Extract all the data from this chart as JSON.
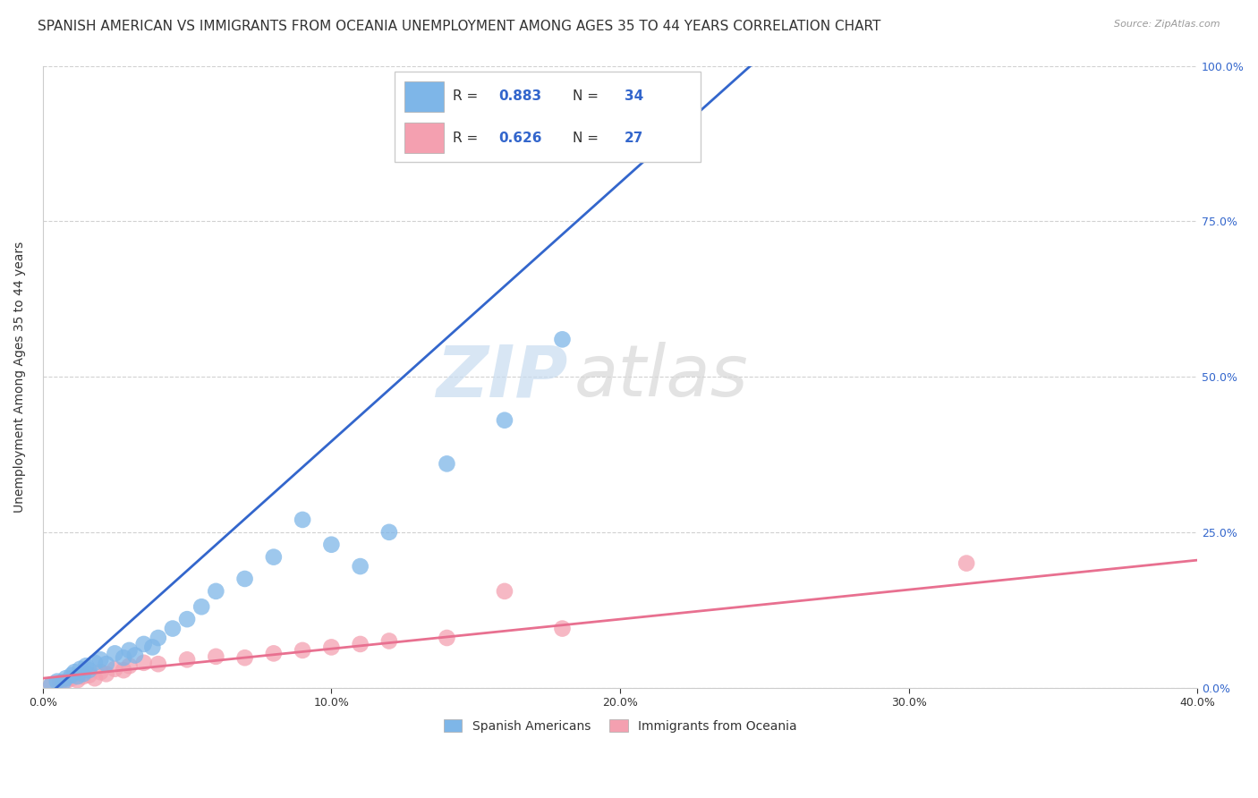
{
  "title": "SPANISH AMERICAN VS IMMIGRANTS FROM OCEANIA UNEMPLOYMENT AMONG AGES 35 TO 44 YEARS CORRELATION CHART",
  "source": "Source: ZipAtlas.com",
  "ylabel": "Unemployment Among Ages 35 to 44 years",
  "xlim": [
    0.0,
    0.4
  ],
  "ylim": [
    0.0,
    1.0
  ],
  "xtick_labels": [
    "0.0%",
    "10.0%",
    "20.0%",
    "30.0%",
    "40.0%"
  ],
  "xtick_vals": [
    0.0,
    0.1,
    0.2,
    0.3,
    0.4
  ],
  "ytick_labels_right": [
    "0.0%",
    "25.0%",
    "50.0%",
    "75.0%",
    "100.0%"
  ],
  "ytick_vals": [
    0.0,
    0.25,
    0.5,
    0.75,
    1.0
  ],
  "grid_color": "#cccccc",
  "background_color": "#ffffff",
  "blue_color": "#7EB6E8",
  "pink_color": "#F4A0B0",
  "blue_line_color": "#3366CC",
  "pink_line_color": "#E87090",
  "R_blue": "0.883",
  "N_blue": "34",
  "R_pink": "0.626",
  "N_pink": "27",
  "text_color_blue": "#3366CC",
  "text_color_dark": "#333333",
  "legend_label_blue": "Spanish Americans",
  "legend_label_pink": "Immigrants from Oceania",
  "watermark_zip": "ZIP",
  "watermark_atlas": "atlas",
  "title_fontsize": 11,
  "axis_label_fontsize": 10,
  "tick_fontsize": 9,
  "blue_scatter_x": [
    0.003,
    0.005,
    0.007,
    0.008,
    0.01,
    0.011,
    0.012,
    0.013,
    0.014,
    0.015,
    0.016,
    0.018,
    0.02,
    0.022,
    0.025,
    0.028,
    0.03,
    0.032,
    0.035,
    0.038,
    0.04,
    0.045,
    0.05,
    0.055,
    0.06,
    0.07,
    0.08,
    0.09,
    0.1,
    0.11,
    0.12,
    0.14,
    0.16,
    0.18
  ],
  "blue_scatter_y": [
    0.005,
    0.01,
    0.008,
    0.015,
    0.02,
    0.025,
    0.018,
    0.03,
    0.022,
    0.035,
    0.028,
    0.04,
    0.045,
    0.038,
    0.055,
    0.048,
    0.06,
    0.052,
    0.07,
    0.065,
    0.08,
    0.095,
    0.11,
    0.13,
    0.155,
    0.175,
    0.21,
    0.27,
    0.23,
    0.195,
    0.25,
    0.36,
    0.43,
    0.56
  ],
  "pink_scatter_x": [
    0.003,
    0.006,
    0.008,
    0.01,
    0.012,
    0.014,
    0.016,
    0.018,
    0.02,
    0.022,
    0.025,
    0.028,
    0.03,
    0.035,
    0.04,
    0.05,
    0.06,
    0.07,
    0.08,
    0.09,
    0.1,
    0.11,
    0.12,
    0.14,
    0.16,
    0.18,
    0.32
  ],
  "pink_scatter_y": [
    0.005,
    0.008,
    0.01,
    0.015,
    0.012,
    0.018,
    0.02,
    0.015,
    0.025,
    0.022,
    0.03,
    0.028,
    0.035,
    0.04,
    0.038,
    0.045,
    0.05,
    0.048,
    0.055,
    0.06,
    0.065,
    0.07,
    0.075,
    0.08,
    0.155,
    0.095,
    0.2
  ],
  "blue_trend_x": [
    0.0,
    0.25
  ],
  "blue_trend_y": [
    -0.02,
    1.02
  ],
  "pink_trend_x": [
    0.0,
    0.4
  ],
  "pink_trend_y": [
    0.015,
    0.205
  ]
}
